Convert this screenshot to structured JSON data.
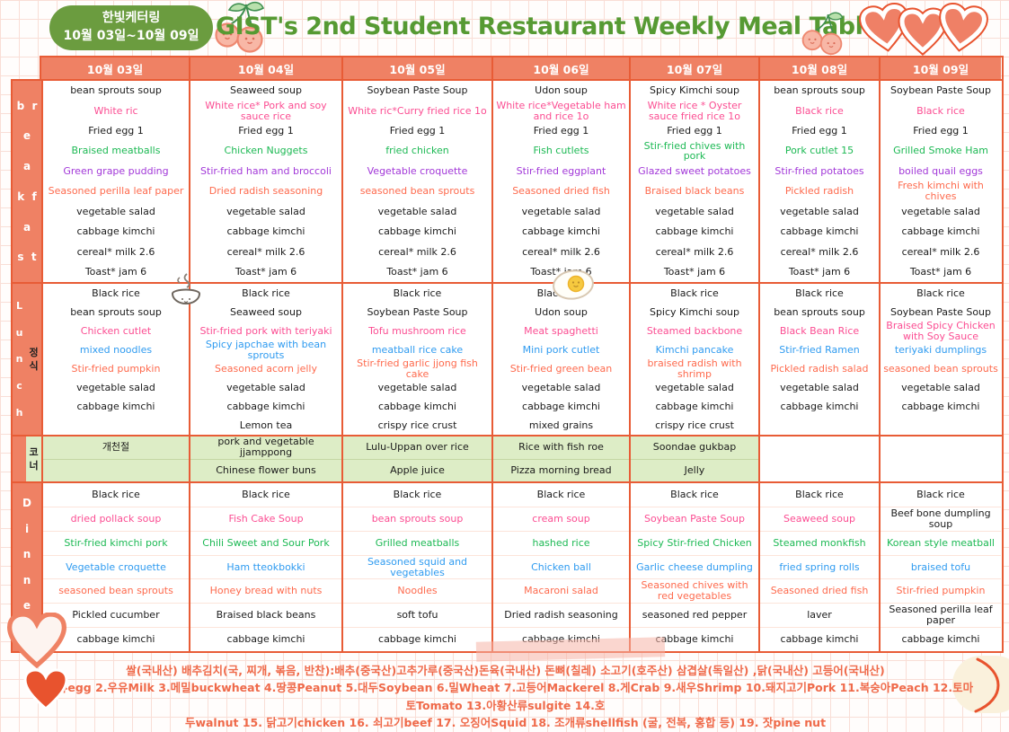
{
  "badge": {
    "line1": "한빛케터링",
    "line2": "10월 03일~10월 09일"
  },
  "title": "GIST's 2nd Student Restaurant Weekly Meal Table",
  "dates": [
    "10월 03일",
    "10월 04일",
    "10월 05일",
    "10월 06일",
    "10월 07일",
    "10월 08일",
    "10월 09일"
  ],
  "side_labels": {
    "breakfast_lines": [
      "b  r",
      "e",
      "a",
      "k  f",
      "a",
      "s  t"
    ],
    "lunch_lines": [
      "L",
      "u",
      "n",
      "c",
      "h"
    ],
    "lunch_sub_lines": [
      "정",
      "식"
    ],
    "corner_lines": [
      "코",
      "너"
    ],
    "dinner_lines": [
      "D",
      "i",
      "n",
      "n",
      "e",
      "r"
    ]
  },
  "colors": {
    "salmon": "#ef8164",
    "table_border": "#e85c36",
    "badge_green": "#6b9c3f",
    "title_green": "#569a33",
    "corner_green": "#ddedc6",
    "text_pink": "#fb4d92",
    "text_green": "#1db954",
    "text_purple": "#a238d8",
    "text_orange": "#fe6a4d",
    "text_blue": "#2f9bf0",
    "footer_red": "#ef6a4a"
  },
  "bands": {
    "breakfast": {
      "row_colors": [
        "black",
        "pink",
        "black",
        "green",
        "purple",
        "orange",
        "black",
        "black",
        "black",
        "black"
      ],
      "columns": [
        [
          "bean sprouts soup",
          "White ric",
          "Fried egg 1",
          "Braised meatballs",
          "Green grape pudding",
          "Seasoned perilla leaf paper",
          "vegetable salad",
          "cabbage kimchi",
          "cereal* milk 2.6",
          "Toast* jam 6"
        ],
        [
          "Seaweed soup",
          "White rice* Pork and soy sauce rice",
          "Fried egg 1",
          "Chicken Nuggets",
          "Stir-fried ham and broccoli",
          "Dried radish seasoning",
          "vegetable salad",
          "cabbage kimchi",
          "cereal* milk 2.6",
          "Toast* jam 6"
        ],
        [
          "Soybean Paste Soup",
          "White ric*Curry fried rice 1o",
          "Fried egg 1",
          "fried chicken",
          "Vegetable croquette",
          "seasoned bean sprouts",
          "vegetable salad",
          "cabbage kimchi",
          "cereal* milk 2.6",
          "Toast* jam 6"
        ],
        [
          "Udon soup",
          "White rice*Vegetable ham and rice 1o",
          "Fried egg 1",
          "Fish cutlets",
          "Stir-fried eggplant",
          "Seasoned dried fish",
          "vegetable salad",
          "cabbage kimchi",
          "cereal* milk 2.6",
          "Toast* jam 6"
        ],
        [
          "Spicy Kimchi soup",
          "White rice * Oyster sauce fried rice 1o",
          "Fried egg 1",
          "Stir-fried chives with pork",
          "Glazed sweet potatoes",
          "Braised black beans",
          "vegetable salad",
          "cabbage kimchi",
          "cereal* milk 2.6",
          "Toast* jam 6"
        ],
        [
          "bean sprouts soup",
          "Black rice",
          "Fried egg 1",
          "Pork cutlet 15",
          "Stir-fried potatoes",
          "Pickled radish",
          "vegetable salad",
          "cabbage kimchi",
          "cereal* milk 2.6",
          "Toast* jam 6"
        ],
        [
          "Soybean Paste Soup",
          "Black rice",
          "Fried egg 1",
          "Grilled Smoke Ham",
          "boiled quail eggs",
          "Fresh kimchi with chives",
          "vegetable salad",
          "cabbage kimchi",
          "cereal* milk 2.6",
          "Toast* jam 6"
        ]
      ]
    },
    "lunch": {
      "row_colors": [
        "black",
        "black",
        "pink",
        "blue",
        "orange",
        "black",
        "black",
        "black"
      ],
      "columns": [
        [
          "Black rice",
          "bean sprouts soup",
          "Chicken cutlet",
          "mixed noodles",
          "Stir-fried pumpkin",
          "vegetable salad",
          "cabbage kimchi",
          ""
        ],
        [
          "Black rice",
          "Seaweed soup",
          "Stir-fried pork with teriyaki",
          "Spicy japchae with bean sprouts",
          "Seasoned acorn jelly",
          "vegetable salad",
          "cabbage kimchi",
          "Lemon tea"
        ],
        [
          "Black rice",
          "Soybean Paste Soup",
          "Tofu mushroom rice",
          "meatball rice cake",
          "Stir-fried garlic jjong fish cake",
          "vegetable salad",
          "cabbage kimchi",
          "crispy rice crust"
        ],
        [
          "Black rice",
          "Udon soup",
          "Meat spaghetti",
          "Mini pork cutlet",
          "Stir-fried green bean",
          "vegetable salad",
          "cabbage kimchi",
          "mixed grains"
        ],
        [
          "Black rice",
          "Spicy Kimchi soup",
          "Steamed backbone",
          "Kimchi pancake",
          "braised radish with shrimp",
          "vegetable salad",
          "cabbage kimchi",
          "crispy rice crust"
        ],
        [
          "Black rice",
          "bean sprouts soup",
          "Black Bean Rice",
          "Stir-fried Ramen",
          "Pickled radish salad",
          "vegetable salad",
          "cabbage kimchi",
          ""
        ],
        [
          "Black rice",
          "Soybean Paste Soup",
          "Braised Spicy Chicken with Soy Sauce",
          "teriyaki dumplings",
          "seasoned bean sprouts",
          "vegetable salad",
          "cabbage kimchi",
          ""
        ]
      ]
    },
    "corner": {
      "green_cols": [
        0,
        1,
        2,
        3,
        4
      ],
      "columns": [
        [
          "개천절",
          ""
        ],
        [
          "pork and vegetable jjamppong",
          "Chinese flower buns"
        ],
        [
          "Lulu-Uppan over rice",
          "Apple juice"
        ],
        [
          "Rice with fish roe",
          "Pizza morning bread"
        ],
        [
          "Soondae gukbap",
          "Jelly"
        ],
        [
          "",
          ""
        ],
        [
          "",
          ""
        ]
      ]
    },
    "dinner": {
      "row_colors": [
        "black",
        "pink",
        "green",
        "blue",
        "orange",
        "black",
        "black"
      ],
      "color_overrides": [
        [
          6,
          1,
          "black"
        ]
      ],
      "columns": [
        [
          "Black rice",
          "dried pollack soup",
          "Stir-fried kimchi pork",
          "Vegetable croquette",
          "seasoned bean sprouts",
          "Pickled cucumber",
          "cabbage kimchi"
        ],
        [
          "Black rice",
          "Fish Cake Soup",
          "Chili Sweet and Sour Pork",
          "Ham tteokbokki",
          "Honey bread with nuts",
          "Braised black beans",
          "cabbage kimchi"
        ],
        [
          "Black rice",
          "bean sprouts soup",
          "Grilled meatballs",
          "Seasoned squid and vegetables",
          "Noodles",
          "soft tofu",
          "cabbage kimchi"
        ],
        [
          "Black rice",
          "cream soup",
          "hashed rice",
          "Chicken ball",
          "Macaroni salad",
          "Dried radish seasoning",
          "cabbage kimchi"
        ],
        [
          "Black rice",
          "Soybean Paste Soup",
          "Spicy Stir-fried Chicken",
          "Garlic cheese dumpling",
          "Seasoned chives with red vegetables",
          "seasoned red pepper",
          "cabbage kimchi"
        ],
        [
          "Black rice",
          "Seaweed soup",
          "Steamed monkfish",
          "fried spring rolls",
          "Seasoned dried fish",
          "laver",
          "cabbage kimchi"
        ],
        [
          "Black rice",
          "Beef bone dumpling soup",
          "Korean style meatball",
          "braised tofu",
          "Stir-fried pumpkin",
          "Seasoned perilla leaf paper",
          "cabbage kimchi"
        ]
      ]
    }
  },
  "footer": {
    "line1": "쌀(국내산) 배추김치(국, 찌개, 볶음, 반찬):배추(중국산)고추가루(중국산)돈육(국내산) 돈뼈(칠레) 소고기(호주산) 삼겹살(독일산) ,닭(국내산) 고등어(국내산)",
    "line2": "#란류egg 2.우유Milk 3.메밀buckwheat 4.땅콩Peanut 5.대두Soybean 6.밀Wheat 7.고등어Mackerel 8.게Crab 9.새우Shrimp 10.돼지고기Pork 11.복숭아Peach 12.토마토Tomato 13.아황산류sulgite 14.호",
    "line3": "두walnut 15. 닭고기chicken 16. 쇠고기beef 17. 오징어Squid 18. 조개류shellfish (굴, 전복, 홍합 등) 19. 잣pine nut"
  }
}
